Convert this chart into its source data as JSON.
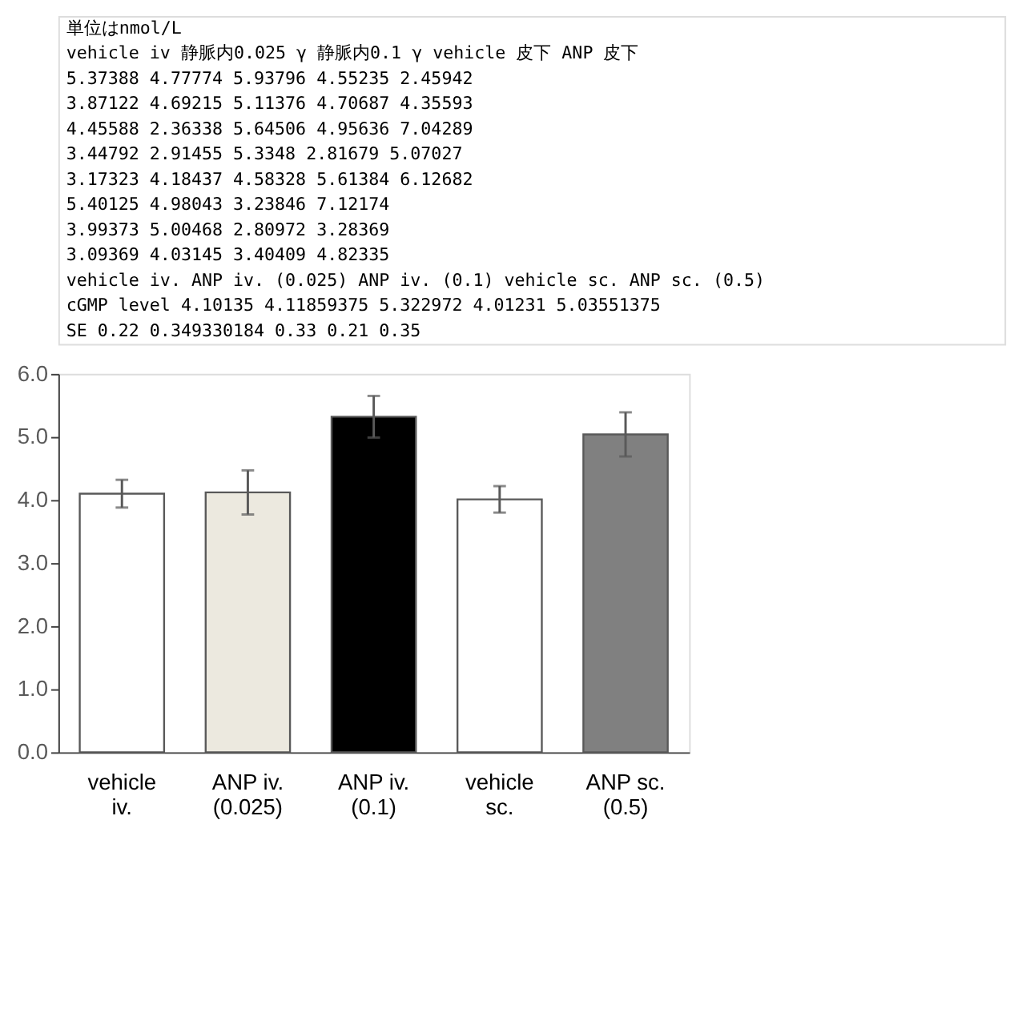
{
  "chart_data": [
    {
      "type": "other",
      "annotations": [
        "単位はnmol/L",
        "vehicle iv   静脈内0.025 γ  静脈内0.1 γ  vehicle 皮下  ANP 皮下",
        "5.37388      4.77774      5.93796      4.55235      2.45942",
        "3.87122      4.69215      5.11376      4.70687      4.35593",
        "4.45588      2.36338      5.64506      4.95636      7.04289",
        "3.44792      2.91455      5.3348       2.81679      5.07027",
        "3.17323      4.18437      4.58328      5.61384      6.12682",
        "5.40125      4.98043                   3.23846      7.12174",
        "3.99373      5.00468                   2.80972      3.28369",
        "3.09369      4.03145                   3.40409      4.82335",
        "vehicle iv.  ANP iv. (0.025)  ANP iv. (0.1)  vehicle sc.  ANP sc. (0.5)",
        "cGMP level  4.10135  4.11859375  5.322972  4.01231  5.03551375",
        "SE  0.22  0.349330184  0.33  0.21  0.35"
      ]
    },
    {
      "type": "bar",
      "categories": [
        "vehicle iv.",
        "ANP iv. (0.025)",
        "ANP iv. (0.1)",
        "vehicle sc.",
        "ANP sc. (0.5)"
      ],
      "values": [
        4.1,
        4.12,
        5.32,
        4.01,
        5.04
      ],
      "errors": [
        0.22,
        0.35,
        0.33,
        0.21,
        0.35
      ],
      "colors": [
        "#ffffff",
        "#ece9df",
        "#000000",
        "#ffffff",
        "#808080"
      ],
      "ylim": [
        0,
        6
      ],
      "yticks": [
        {
          "value": 0,
          "label": "0.0"
        },
        {
          "value": 1,
          "label": "1.0"
        },
        {
          "value": 2,
          "label": "2.0"
        },
        {
          "value": 3,
          "label": "3.0"
        },
        {
          "value": 4,
          "label": "4.0"
        },
        {
          "value": 5,
          "label": "5.0"
        },
        {
          "value": 6,
          "label": "6.0"
        }
      ],
      "grid": false
    }
  ]
}
